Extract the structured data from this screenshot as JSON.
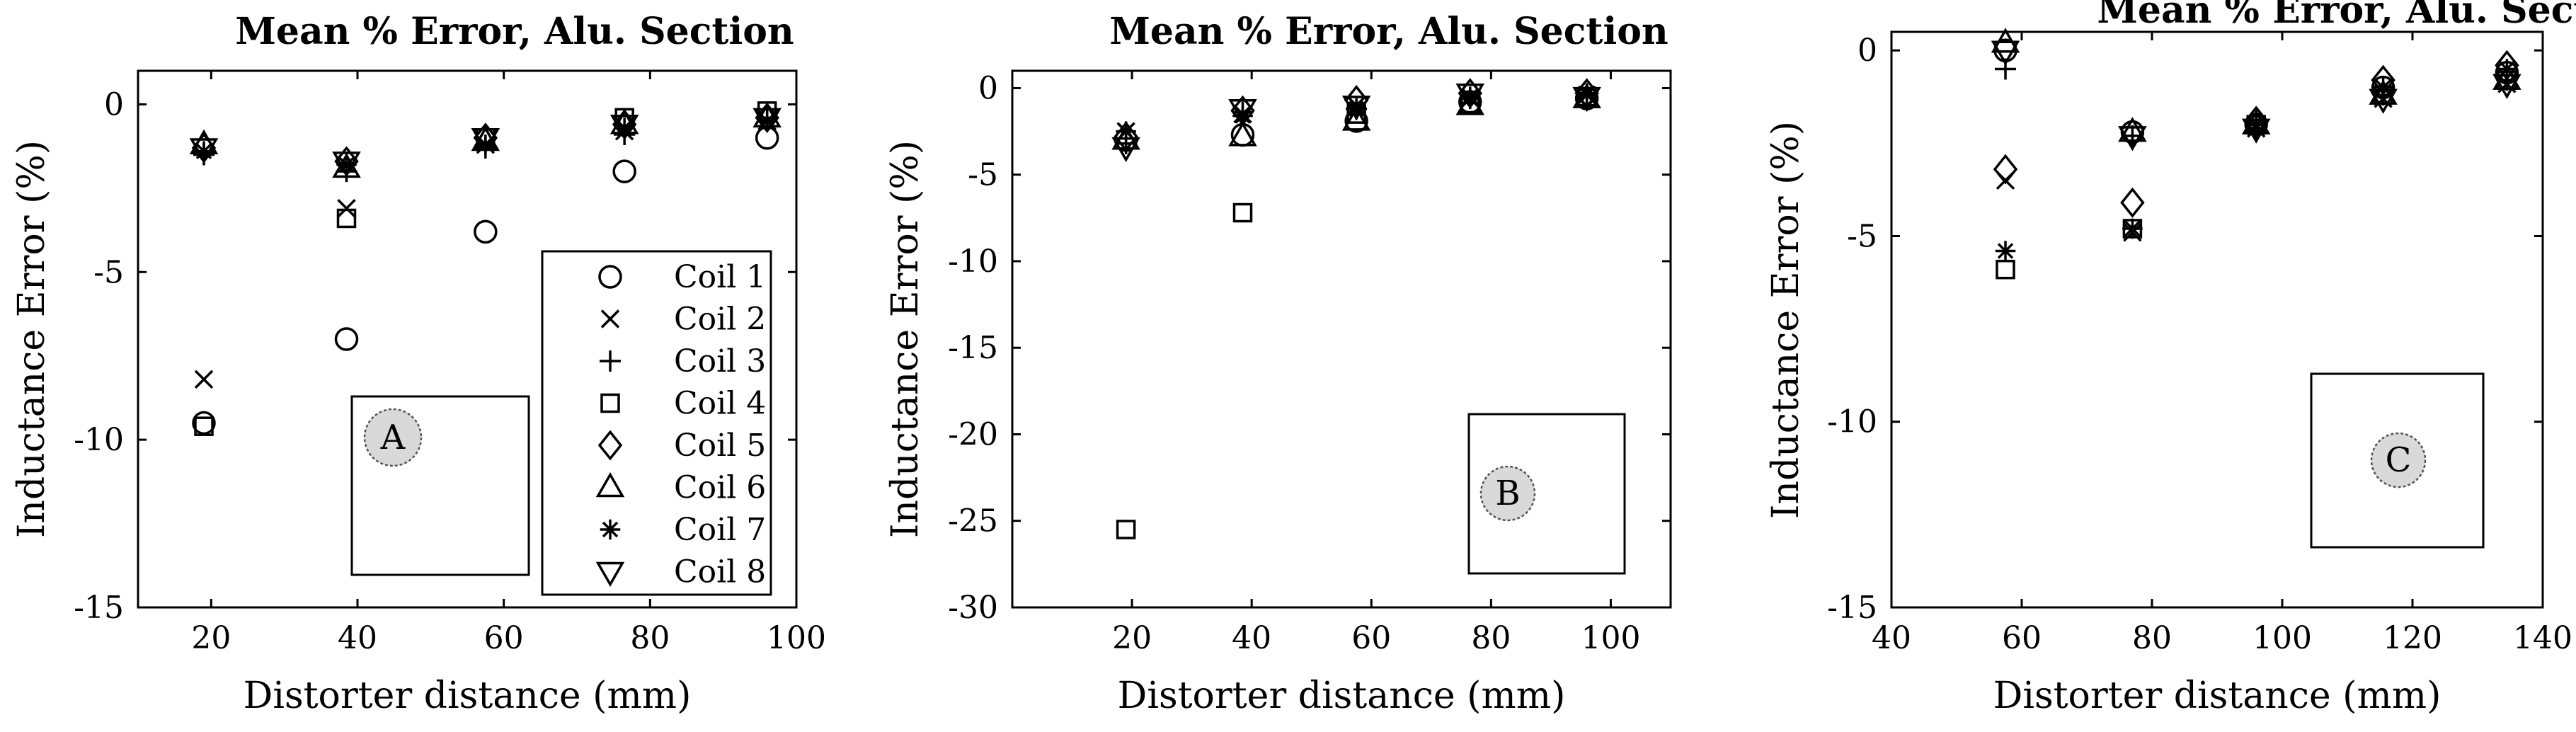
{
  "chart_data": [
    {
      "type": "scatter",
      "title": "Mean % Error, Alu. Section",
      "xlabel": "Distorter distance (mm)",
      "ylabel": "Inductance Error (%)",
      "xlim": [
        10,
        100
      ],
      "ylim": [
        -15,
        1
      ],
      "xticks": [
        20,
        40,
        60,
        80,
        100
      ],
      "yticks": [
        -15,
        -10,
        -5,
        0
      ],
      "inset_label": "A",
      "legend": {
        "show": true,
        "position": "bottom-right"
      },
      "x": [
        19,
        38.5,
        57.5,
        76.5,
        96
      ],
      "series": [
        {
          "name": "Coil 1",
          "marker": "circle",
          "values": [
            -9.5,
            -7.0,
            -3.8,
            -2.0,
            -1.0
          ]
        },
        {
          "name": "Coil 2",
          "marker": "x",
          "values": [
            -8.2,
            -3.1,
            -1.2,
            -0.8,
            -0.5
          ]
        },
        {
          "name": "Coil 3",
          "marker": "plus",
          "values": [
            -1.5,
            -2.0,
            -1.3,
            -0.9,
            -0.4
          ]
        },
        {
          "name": "Coil 4",
          "marker": "square",
          "values": [
            -9.6,
            -3.4,
            -1.0,
            -0.4,
            -0.2
          ]
        },
        {
          "name": "Coil 5",
          "marker": "diamond",
          "values": [
            -1.3,
            -1.7,
            -1.0,
            -0.6,
            -0.4
          ]
        },
        {
          "name": "Coil 6",
          "marker": "triangle-up",
          "values": [
            -1.2,
            -1.9,
            -1.1,
            -0.6,
            -0.4
          ]
        },
        {
          "name": "Coil 7",
          "marker": "asterisk",
          "values": [
            -1.4,
            -1.8,
            -1.2,
            -0.7,
            -0.5
          ]
        },
        {
          "name": "Coil 8",
          "marker": "triangle-down",
          "values": [
            -1.3,
            -1.7,
            -1.0,
            -0.6,
            -0.4
          ]
        }
      ]
    },
    {
      "type": "scatter",
      "title": "Mean % Error, Alu. Section",
      "xlabel": "Distorter distance (mm)",
      "ylabel": "Inductance Error (%)",
      "xlim": [
        0,
        110
      ],
      "ylim": [
        -30,
        1
      ],
      "xticks": [
        20,
        40,
        60,
        80,
        100
      ],
      "yticks": [
        -30,
        -25,
        -20,
        -15,
        -10,
        -5,
        0
      ],
      "inset_label": "B",
      "legend": {
        "show": false
      },
      "x": [
        19,
        38.5,
        57.5,
        76.5,
        96
      ],
      "series": [
        {
          "name": "Coil 1",
          "marker": "circle",
          "values": [
            -3.0,
            -2.7,
            -1.9,
            -0.8,
            -0.6
          ]
        },
        {
          "name": "Coil 2",
          "marker": "x",
          "values": [
            -2.5,
            -1.5,
            -1.0,
            -0.6,
            -0.4
          ]
        },
        {
          "name": "Coil 3",
          "marker": "plus",
          "values": [
            -3.2,
            -1.4,
            -1.2,
            -0.6,
            -0.4
          ]
        },
        {
          "name": "Coil 4",
          "marker": "square",
          "values": [
            -25.5,
            -7.2,
            -1.5,
            -0.9,
            -0.5
          ]
        },
        {
          "name": "Coil 5",
          "marker": "diamond",
          "values": [
            -2.8,
            -1.3,
            -0.7,
            -0.3,
            -0.3
          ]
        },
        {
          "name": "Coil 6",
          "marker": "triangle-up",
          "values": [
            -3.0,
            -2.8,
            -1.9,
            -1.0,
            -0.6
          ]
        },
        {
          "name": "Coil 7",
          "marker": "asterisk",
          "values": [
            -2.5,
            -1.6,
            -1.2,
            -0.5,
            -0.3
          ]
        },
        {
          "name": "Coil 8",
          "marker": "triangle-down",
          "values": [
            -3.4,
            -1.2,
            -1.0,
            -0.3,
            -0.5
          ]
        }
      ]
    },
    {
      "type": "scatter",
      "title": "Mean % Error, Alu. Section",
      "xlabel": "Distorter distance (mm)",
      "ylabel": "Inductance Error (%)",
      "xlim": [
        40,
        140
      ],
      "ylim": [
        -15,
        0.5
      ],
      "xticks": [
        40,
        60,
        80,
        100,
        120,
        140
      ],
      "yticks": [
        -15,
        -10,
        -5,
        0
      ],
      "inset_label": "C",
      "legend": {
        "show": false
      },
      "x": [
        57.5,
        77,
        96,
        115.5,
        134.5
      ],
      "series": [
        {
          "name": "Coil 1",
          "marker": "circle",
          "values": [
            0.0,
            -2.2,
            -2.0,
            -1.0,
            -0.6
          ]
        },
        {
          "name": "Coil 2",
          "marker": "x",
          "values": [
            -3.5,
            -4.9,
            -2.1,
            -1.3,
            -0.9
          ]
        },
        {
          "name": "Coil 3",
          "marker": "plus",
          "values": [
            -0.5,
            -2.3,
            -2.1,
            -1.2,
            -0.8
          ]
        },
        {
          "name": "Coil 4",
          "marker": "square",
          "values": [
            -5.9,
            -4.8,
            -2.0,
            -1.2,
            -0.8
          ]
        },
        {
          "name": "Coil 5",
          "marker": "diamond",
          "values": [
            -3.2,
            -4.1,
            -1.9,
            -0.8,
            -0.4
          ]
        },
        {
          "name": "Coil 6",
          "marker": "triangle-up",
          "values": [
            0.2,
            -2.2,
            -2.0,
            -1.2,
            -0.8
          ]
        },
        {
          "name": "Coil 7",
          "marker": "asterisk",
          "values": [
            -5.4,
            -4.8,
            -2.0,
            -1.0,
            -0.5
          ]
        },
        {
          "name": "Coil 8",
          "marker": "triangle-down",
          "values": [
            0.0,
            -2.3,
            -2.1,
            -1.3,
            -0.9
          ]
        }
      ]
    }
  ]
}
